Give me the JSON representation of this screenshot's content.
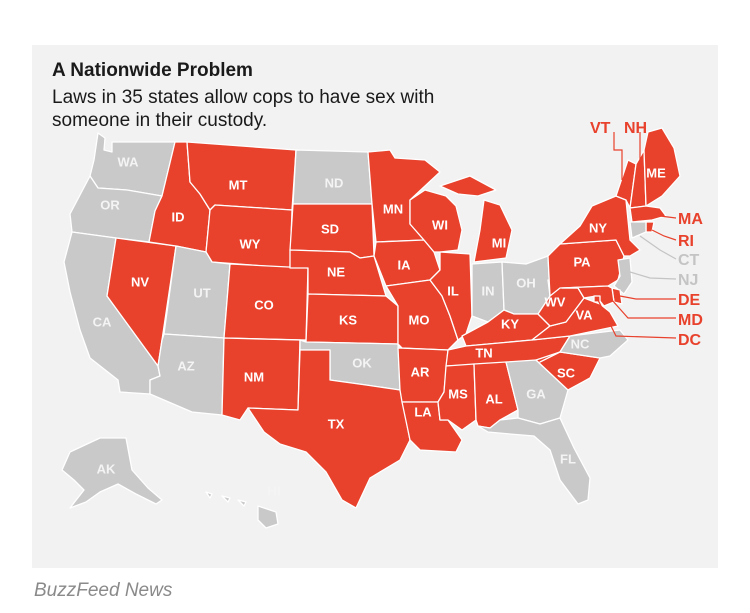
{
  "title": "A Nationwide Problem",
  "subtitle": "Laws in 35 states allow cops to have sex with someone in their custody.",
  "credit": "BuzzFeed News",
  "colors": {
    "allowed": "#e8412c",
    "not_allowed": "#c9c9c9",
    "panel": "#f2f2f2"
  },
  "states": {
    "WA": {
      "label": "WA",
      "status": "not_allowed"
    },
    "OR": {
      "label": "OR",
      "status": "not_allowed"
    },
    "CA": {
      "label": "CA",
      "status": "not_allowed"
    },
    "ID": {
      "label": "ID",
      "status": "allowed"
    },
    "NV": {
      "label": "NV",
      "status": "allowed"
    },
    "MT": {
      "label": "MT",
      "status": "allowed"
    },
    "WY": {
      "label": "WY",
      "status": "allowed"
    },
    "UT": {
      "label": "UT",
      "status": "not_allowed"
    },
    "AZ": {
      "label": "AZ",
      "status": "not_allowed"
    },
    "CO": {
      "label": "CO",
      "status": "allowed"
    },
    "NM": {
      "label": "NM",
      "status": "allowed"
    },
    "ND": {
      "label": "ND",
      "status": "not_allowed"
    },
    "SD": {
      "label": "SD",
      "status": "allowed"
    },
    "NE": {
      "label": "NE",
      "status": "allowed"
    },
    "KS": {
      "label": "KS",
      "status": "allowed"
    },
    "OK": {
      "label": "OK",
      "status": "not_allowed"
    },
    "TX": {
      "label": "TX",
      "status": "allowed"
    },
    "MN": {
      "label": "MN",
      "status": "allowed"
    },
    "IA": {
      "label": "IA",
      "status": "allowed"
    },
    "MO": {
      "label": "MO",
      "status": "allowed"
    },
    "AR": {
      "label": "AR",
      "status": "allowed"
    },
    "LA": {
      "label": "LA",
      "status": "allowed"
    },
    "WI": {
      "label": "WI",
      "status": "allowed"
    },
    "IL": {
      "label": "IL",
      "status": "allowed"
    },
    "MI": {
      "label": "MI",
      "status": "allowed"
    },
    "IN": {
      "label": "IN",
      "status": "not_allowed"
    },
    "OH": {
      "label": "OH",
      "status": "not_allowed"
    },
    "KY": {
      "label": "KY",
      "status": "allowed"
    },
    "TN": {
      "label": "TN",
      "status": "allowed"
    },
    "MS": {
      "label": "MS",
      "status": "allowed"
    },
    "AL": {
      "label": "AL",
      "status": "allowed"
    },
    "GA": {
      "label": "GA",
      "status": "not_allowed"
    },
    "FL": {
      "label": "FL",
      "status": "not_allowed"
    },
    "SC": {
      "label": "SC",
      "status": "allowed"
    },
    "NC": {
      "label": "NC",
      "status": "not_allowed"
    },
    "VA": {
      "label": "VA",
      "status": "allowed"
    },
    "WV": {
      "label": "WV",
      "status": "allowed"
    },
    "PA": {
      "label": "PA",
      "status": "allowed"
    },
    "NY": {
      "label": "NY",
      "status": "allowed"
    },
    "ME": {
      "label": "ME",
      "status": "allowed"
    },
    "AK": {
      "label": "AK",
      "status": "not_allowed"
    },
    "HI": {
      "label": "HI",
      "status": "not_allowed"
    }
  },
  "callouts": {
    "VT": {
      "label": "VT",
      "status": "allowed"
    },
    "NH": {
      "label": "NH",
      "status": "allowed"
    },
    "MA": {
      "label": "MA",
      "status": "allowed"
    },
    "RI": {
      "label": "RI",
      "status": "allowed"
    },
    "CT": {
      "label": "CT",
      "status": "not_allowed"
    },
    "NJ": {
      "label": "NJ",
      "status": "not_allowed"
    },
    "DE": {
      "label": "DE",
      "status": "allowed"
    },
    "MD": {
      "label": "MD",
      "status": "allowed"
    },
    "DC": {
      "label": "DC",
      "status": "allowed"
    }
  }
}
